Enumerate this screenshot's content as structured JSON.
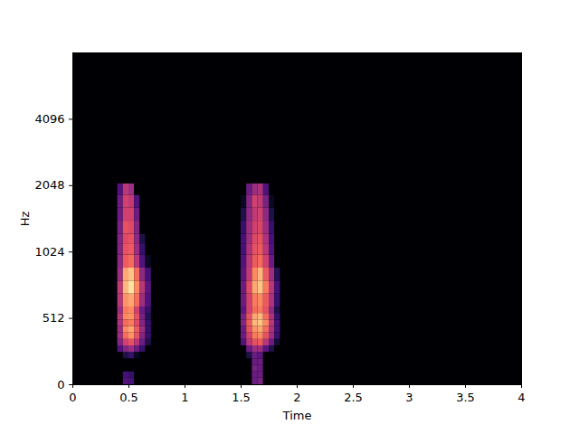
{
  "chart_data": {
    "type": "heatmap",
    "xlabel": "Time",
    "ylabel": "Hz",
    "xlim": [
      0,
      4
    ],
    "xticks": [
      0,
      0.5,
      1,
      1.5,
      2,
      2.5,
      3,
      3.5,
      4
    ],
    "ylim": [
      0,
      8000
    ],
    "yticks": [
      0,
      512,
      1024,
      2048,
      4096
    ],
    "zlim": [
      -80,
      0
    ],
    "freq_edges": [
      0,
      50,
      100,
      150,
      200,
      250,
      300,
      350,
      400,
      450,
      500,
      550,
      600,
      700,
      800,
      900,
      1000,
      1150,
      1300,
      1500,
      1700,
      1900,
      2100
    ],
    "columns": [
      {
        "t": [
          0.4,
          0.45
        ],
        "z": [
          -80,
          -80,
          -80,
          -80,
          -80,
          -60,
          -50,
          -45,
          -45,
          -42,
          -40,
          -45,
          -40,
          -38,
          -45,
          -48,
          -50,
          -50,
          -52,
          -55,
          -55,
          -60
        ]
      },
      {
        "t": [
          0.45,
          0.5
        ],
        "z": [
          -60,
          -62,
          -80,
          -80,
          -70,
          -50,
          -35,
          -25,
          -20,
          -25,
          -20,
          -22,
          -18,
          -12,
          -15,
          -28,
          -30,
          -32,
          -30,
          -35,
          -35,
          -40
        ]
      },
      {
        "t": [
          0.5,
          0.55
        ],
        "z": [
          -62,
          -65,
          -80,
          -80,
          -65,
          -45,
          -30,
          -18,
          -15,
          -22,
          -18,
          -20,
          -15,
          -5,
          -10,
          -25,
          -28,
          -30,
          -32,
          -35,
          -38,
          -45
        ]
      },
      {
        "t": [
          0.55,
          0.6
        ],
        "z": [
          -80,
          -80,
          -80,
          -80,
          -75,
          -55,
          -40,
          -30,
          -28,
          -32,
          -30,
          -35,
          -25,
          -20,
          -25,
          -40,
          -45,
          -48,
          -50,
          -55,
          -60,
          -80
        ]
      },
      {
        "t": [
          0.6,
          0.65
        ],
        "z": [
          -80,
          -80,
          -80,
          -80,
          -80,
          -65,
          -55,
          -50,
          -45,
          -50,
          -52,
          -55,
          -45,
          -40,
          -48,
          -60,
          -65,
          -70,
          -80,
          -80,
          -80,
          -80
        ]
      },
      {
        "t": [
          0.65,
          0.7
        ],
        "z": [
          -80,
          -80,
          -80,
          -80,
          -80,
          -80,
          -70,
          -65,
          -65,
          -65,
          -68,
          -65,
          -60,
          -58,
          -62,
          -75,
          -80,
          -80,
          -80,
          -80,
          -80,
          -80
        ]
      },
      {
        "t": [
          1.5,
          1.55
        ],
        "z": [
          -80,
          -80,
          -80,
          -80,
          -80,
          -80,
          -60,
          -55,
          -55,
          -50,
          -52,
          -58,
          -55,
          -55,
          -58,
          -60,
          -62,
          -62,
          -65,
          -70,
          -75,
          -80
        ]
      },
      {
        "t": [
          1.55,
          1.6
        ],
        "z": [
          -80,
          -80,
          -80,
          -80,
          -70,
          -55,
          -40,
          -35,
          -30,
          -28,
          -30,
          -35,
          -35,
          -32,
          -38,
          -40,
          -42,
          -45,
          -45,
          -48,
          -50,
          -55
        ]
      },
      {
        "t": [
          1.6,
          1.65
        ],
        "z": [
          -55,
          -55,
          -52,
          -55,
          -55,
          -45,
          -30,
          -22,
          -18,
          -12,
          -15,
          -25,
          -22,
          -15,
          -20,
          -28,
          -30,
          -32,
          -35,
          -38,
          -35,
          -45
        ]
      },
      {
        "t": [
          1.65,
          1.7
        ],
        "z": [
          -52,
          -55,
          -55,
          -55,
          -58,
          -45,
          -28,
          -20,
          -15,
          -10,
          -12,
          -22,
          -20,
          -10,
          -12,
          -25,
          -28,
          -30,
          -33,
          -35,
          -38,
          -42
        ]
      },
      {
        "t": [
          1.7,
          1.75
        ],
        "z": [
          -80,
          -80,
          -80,
          -80,
          -80,
          -58,
          -40,
          -30,
          -25,
          -20,
          -25,
          -30,
          -28,
          -22,
          -28,
          -35,
          -40,
          -42,
          -45,
          -48,
          -52,
          -60
        ]
      },
      {
        "t": [
          1.75,
          1.8
        ],
        "z": [
          -80,
          -80,
          -80,
          -80,
          -80,
          -70,
          -55,
          -45,
          -42,
          -40,
          -42,
          -48,
          -42,
          -40,
          -45,
          -55,
          -60,
          -62,
          -65,
          -70,
          -75,
          -80
        ]
      },
      {
        "t": [
          1.8,
          1.85
        ],
        "z": [
          -80,
          -80,
          -80,
          -80,
          -80,
          -80,
          -72,
          -65,
          -62,
          -62,
          -65,
          -70,
          -65,
          -62,
          -68,
          -78,
          -80,
          -80,
          -80,
          -80,
          -80,
          -80
        ]
      }
    ]
  }
}
